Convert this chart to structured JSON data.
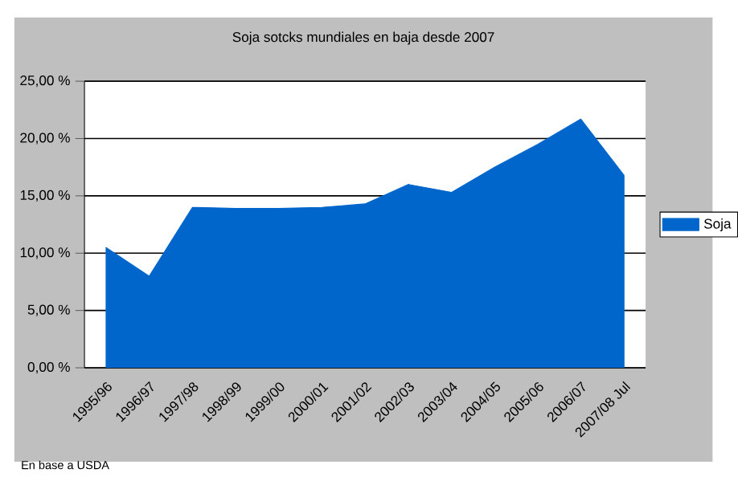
{
  "chart_data": {
    "type": "area",
    "title": "Soja sotcks mundiales en baja desde 2007",
    "categories": [
      "1995/96",
      "1996/97",
      "1997/98",
      "1998/99",
      "1999/00",
      "2000/01",
      "2001/02",
      "2002/03",
      "2003/04",
      "2004/05",
      "2005/06",
      "2006/07",
      "2007/08 Jul"
    ],
    "series": [
      {
        "name": "Soja",
        "color": "#0066cc",
        "values": [
          10.5,
          8.0,
          14.0,
          13.9,
          13.9,
          14.0,
          14.3,
          16.0,
          15.3,
          17.5,
          19.5,
          21.7,
          16.8
        ]
      }
    ],
    "ylim": [
      0,
      25
    ],
    "yticks": [
      {
        "value": 0,
        "label": "0,00 %"
      },
      {
        "value": 5,
        "label": "5,00 %"
      },
      {
        "value": 10,
        "label": "10,00 %"
      },
      {
        "value": 15,
        "label": "15,00 %"
      },
      {
        "value": 20,
        "label": "20,00 %"
      },
      {
        "value": 25,
        "label": "25,00 %"
      }
    ],
    "grid": "y",
    "legend": "right",
    "annotations": [
      "En base a USDA"
    ]
  }
}
